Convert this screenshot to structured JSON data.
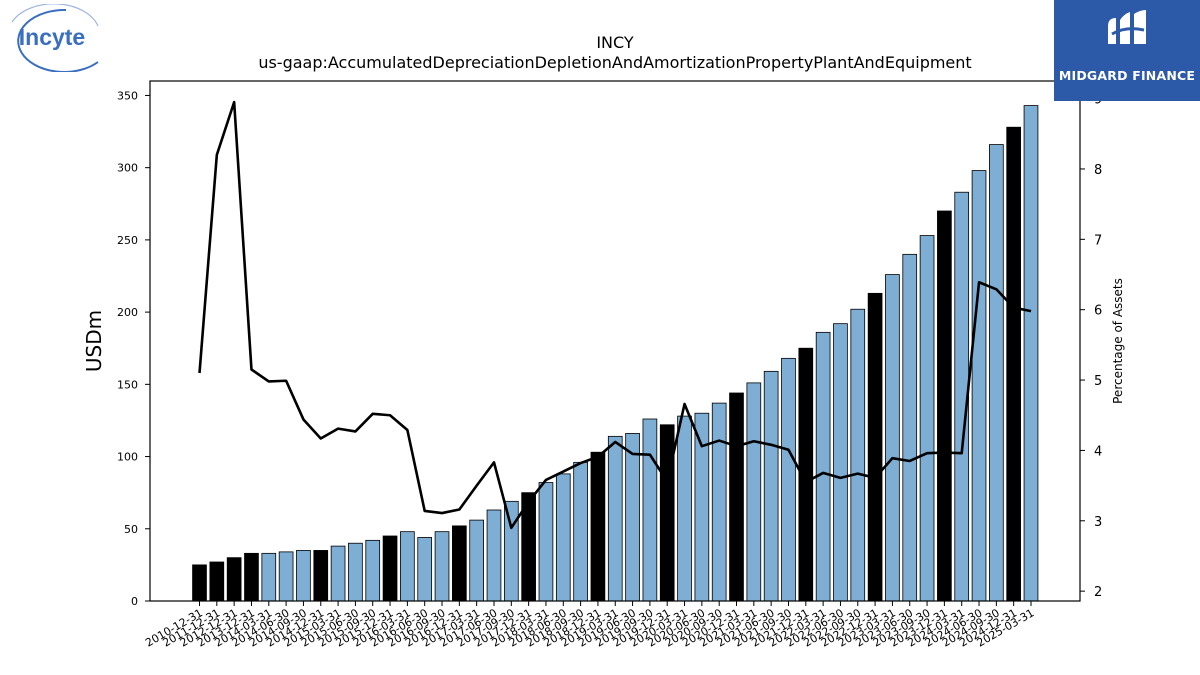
{
  "logos": {
    "company_logo_text": "Incyte",
    "brand_name": "MIDGARD FINANCE"
  },
  "colors": {
    "bar_regular": "#7eaed3",
    "bar_highlight": "#000000",
    "line": "#000000"
  },
  "chart_data": {
    "type": "bar",
    "title": "INCY",
    "subtitle": "us-gaap:AccumulatedDepreciationDepletionAndAmortizationPropertyPlantAndEquipment",
    "ylabel": "USDm",
    "y2label": "Percentage of Assets",
    "ylim": [
      0,
      360
    ],
    "y2lim": [
      1.86,
      9.25
    ],
    "yticks": [
      0,
      50,
      100,
      150,
      200,
      250,
      300,
      350
    ],
    "y2ticks": [
      2,
      3,
      4,
      5,
      6,
      7,
      8,
      9
    ],
    "categories": [
      "2010-12-31",
      "2011-12-31",
      "2012-12-31",
      "2013-12-31",
      "2014-03-31",
      "2014-06-30",
      "2014-09-30",
      "2014-12-31",
      "2015-03-31",
      "2015-06-30",
      "2015-09-30",
      "2015-12-31",
      "2016-03-31",
      "2016-06-30",
      "2016-09-30",
      "2016-12-31",
      "2017-03-31",
      "2017-06-30",
      "2017-09-30",
      "2017-12-31",
      "2018-03-31",
      "2018-06-30",
      "2018-09-30",
      "2018-12-31",
      "2019-03-31",
      "2019-06-30",
      "2019-09-30",
      "2019-12-31",
      "2020-03-31",
      "2020-06-30",
      "2020-09-30",
      "2020-12-31",
      "2021-03-31",
      "2021-06-30",
      "2021-09-30",
      "2021-12-31",
      "2022-03-31",
      "2022-06-30",
      "2022-09-30",
      "2022-12-31",
      "2023-03-31",
      "2023-06-30",
      "2023-09-30",
      "2023-12-31",
      "2024-03-31",
      "2024-06-30",
      "2024-09-30",
      "2024-12-31",
      "2025-03-31"
    ],
    "series": [
      {
        "name": "",
        "type": "bar",
        "values": [
          25,
          27,
          30,
          33,
          33,
          34,
          35,
          35,
          38,
          40,
          42,
          45,
          48,
          44,
          48,
          52,
          56,
          63,
          69,
          75,
          82,
          88,
          96,
          103,
          114,
          116,
          126,
          122,
          128,
          130,
          137,
          144,
          151,
          159,
          168,
          175,
          186,
          192,
          202,
          213,
          226,
          240,
          253,
          270,
          283,
          298,
          316,
          328,
          343
        ],
        "highlight": [
          true,
          true,
          true,
          true,
          false,
          false,
          false,
          true,
          false,
          false,
          false,
          true,
          false,
          false,
          false,
          true,
          false,
          false,
          false,
          true,
          false,
          false,
          false,
          true,
          false,
          false,
          false,
          true,
          false,
          false,
          false,
          true,
          false,
          false,
          false,
          true,
          false,
          false,
          false,
          true,
          false,
          false,
          false,
          true,
          false,
          false,
          false,
          true,
          false
        ]
      },
      {
        "name": "",
        "type": "line",
        "axis": "right",
        "values": [
          5.1,
          8.2,
          8.95,
          5.15,
          4.98,
          4.99,
          4.44,
          4.17,
          4.31,
          4.27,
          4.52,
          4.5,
          4.29,
          3.14,
          3.11,
          3.16,
          3.5,
          3.83,
          2.9,
          3.27,
          3.58,
          3.7,
          3.82,
          3.91,
          4.12,
          3.95,
          3.94,
          3.56,
          4.66,
          4.06,
          4.14,
          4.06,
          4.13,
          4.08,
          4.01,
          3.55,
          3.68,
          3.61,
          3.67,
          3.61,
          3.89,
          3.85,
          3.96,
          3.97,
          3.96,
          6.39,
          6.29,
          6.03,
          5.98
        ]
      }
    ]
  }
}
